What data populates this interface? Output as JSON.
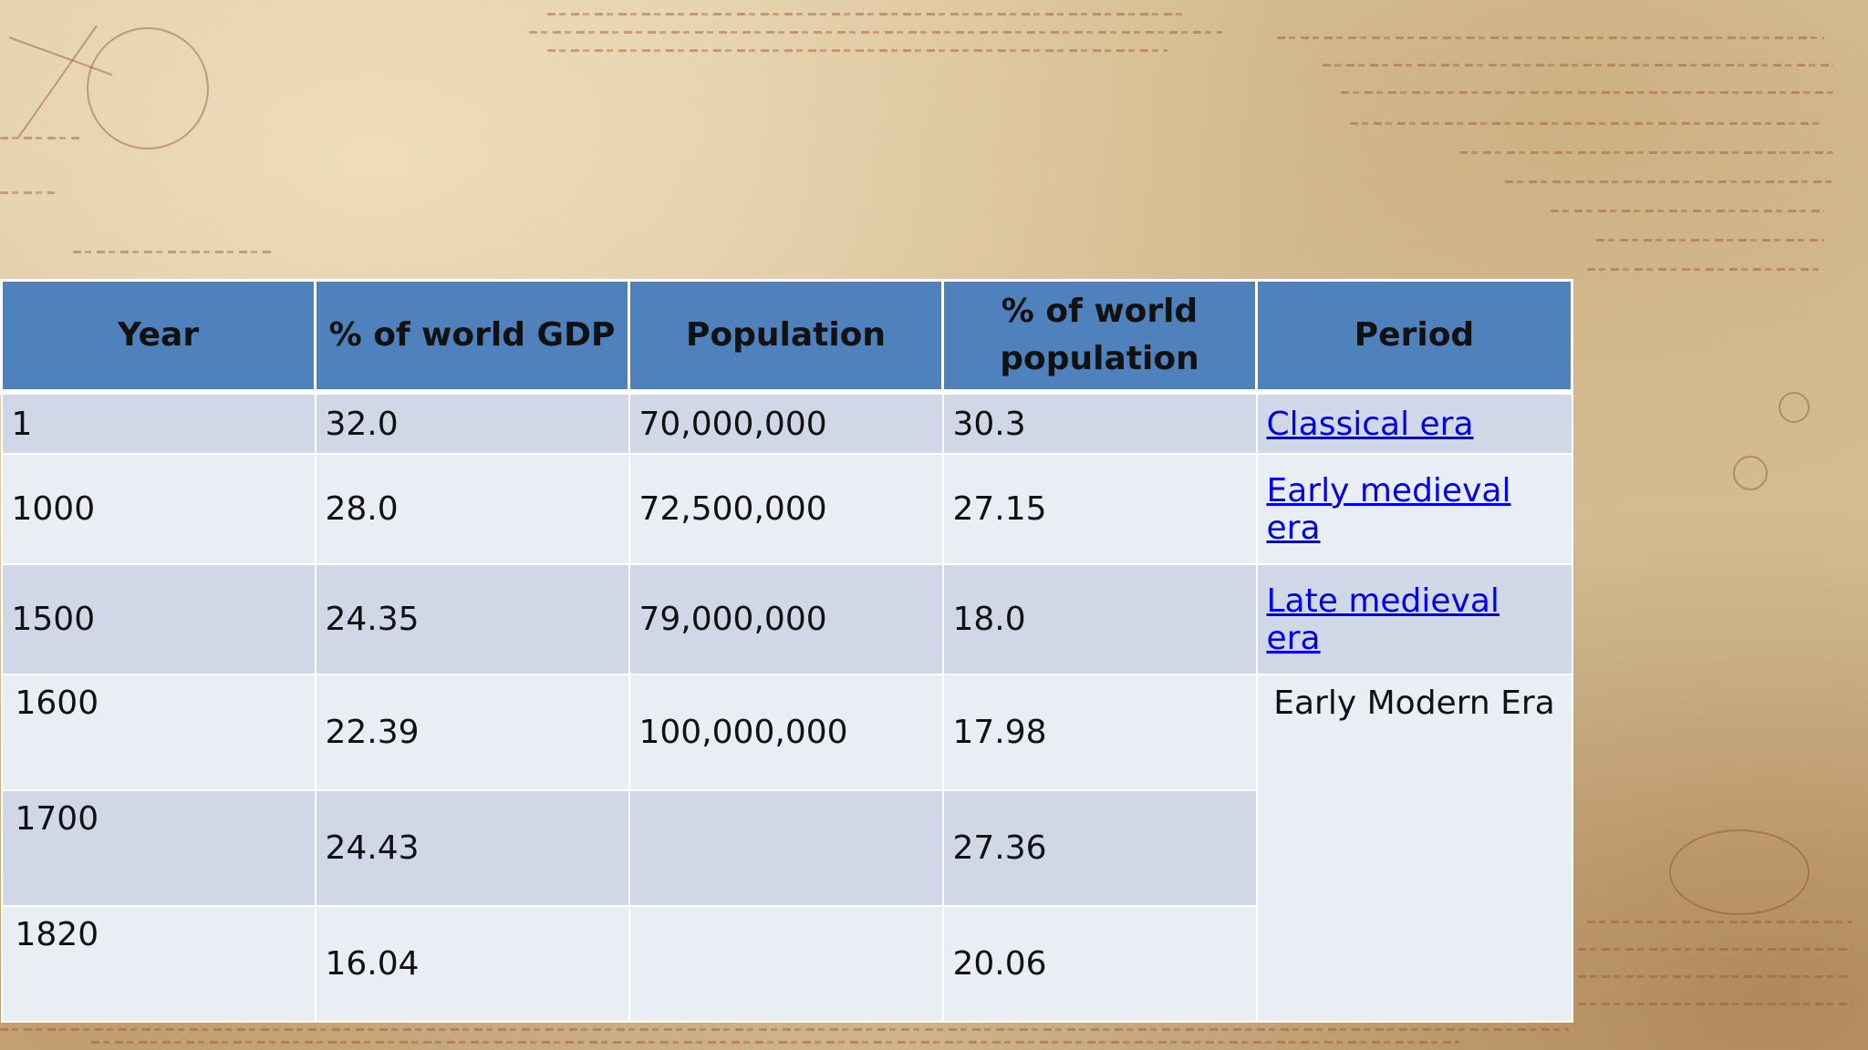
{
  "table": {
    "headers": [
      "Year",
      "% of world GDP",
      "Population",
      "% of world population",
      "Period"
    ],
    "rows": [
      {
        "year": "1",
        "gdp": "32.0",
        "population": "70,000,000",
        "pop_pct": "30.3",
        "period": "Classical era"
      },
      {
        "year": "1000",
        "gdp": "28.0",
        "population": "72,500,000",
        "pop_pct": "27.15",
        "period": "Early medieval era"
      },
      {
        "year": "1500",
        "gdp": "24.35",
        "population": "79,000,000",
        "pop_pct": "18.0",
        "period": "Late medieval era"
      },
      {
        "year": "1600",
        "gdp": "22.39",
        "population": "100,000,000",
        "pop_pct": "17.98",
        "period": "Early Modern Era"
      },
      {
        "year": "1700",
        "gdp": "24.43",
        "population": "",
        "pop_pct": "27.36"
      },
      {
        "year": "1820",
        "gdp": "16.04",
        "population": "",
        "pop_pct": "20.06"
      }
    ]
  },
  "colors": {
    "header_bg": "#4f81bd",
    "row_odd": "#d0d8e8",
    "row_even": "#e9edf4",
    "link": "#0000ee"
  }
}
